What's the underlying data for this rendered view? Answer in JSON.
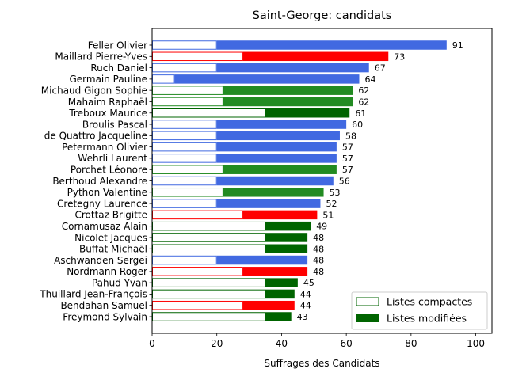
{
  "chart_data": {
    "type": "bar",
    "orientation": "horizontal",
    "title": "Saint-George: candidats",
    "xlabel": "Suffrages des Candidats",
    "ylabel": "",
    "xlim": [
      0,
      105
    ],
    "xticks": [
      0,
      20,
      40,
      60,
      80,
      100
    ],
    "grid": false,
    "legend_position": "lower-right",
    "legend": [
      {
        "label": "Listes compactes",
        "style": "outline",
        "color": "#006400"
      },
      {
        "label": "Listes modifiées",
        "style": "filled",
        "color": "#006400"
      }
    ],
    "party_colors": {
      "blue": "#4169e1",
      "red": "#ff0000",
      "green": "#228b22",
      "darkgreen": "#006400"
    },
    "candidates": [
      {
        "name": "Feller Olivier",
        "total": 91,
        "compact": 20,
        "party": "blue"
      },
      {
        "name": "Maillard Pierre-Yves",
        "total": 73,
        "compact": 28,
        "party": "red"
      },
      {
        "name": "Ruch Daniel",
        "total": 67,
        "compact": 20,
        "party": "blue"
      },
      {
        "name": "Germain Pauline",
        "total": 64,
        "compact": 7,
        "party": "blue"
      },
      {
        "name": "Michaud Gigon Sophie",
        "total": 62,
        "compact": 22,
        "party": "green"
      },
      {
        "name": "Mahaim Raphaël",
        "total": 62,
        "compact": 22,
        "party": "green"
      },
      {
        "name": "Treboux Maurice",
        "total": 61,
        "compact": 35,
        "party": "darkgreen"
      },
      {
        "name": "Broulis Pascal",
        "total": 60,
        "compact": 20,
        "party": "blue"
      },
      {
        "name": "de Quattro Jacqueline",
        "total": 58,
        "compact": 20,
        "party": "blue"
      },
      {
        "name": "Petermann Olivier",
        "total": 57,
        "compact": 20,
        "party": "blue"
      },
      {
        "name": "Wehrli Laurent",
        "total": 57,
        "compact": 20,
        "party": "blue"
      },
      {
        "name": "Porchet Léonore",
        "total": 57,
        "compact": 22,
        "party": "green"
      },
      {
        "name": "Berthoud Alexandre",
        "total": 56,
        "compact": 20,
        "party": "blue"
      },
      {
        "name": "Python Valentine",
        "total": 53,
        "compact": 22,
        "party": "green"
      },
      {
        "name": "Cretegny Laurence",
        "total": 52,
        "compact": 20,
        "party": "blue"
      },
      {
        "name": "Crottaz Brigitte",
        "total": 51,
        "compact": 28,
        "party": "red"
      },
      {
        "name": "Cornamusaz Alain",
        "total": 49,
        "compact": 35,
        "party": "darkgreen"
      },
      {
        "name": "Nicolet Jacques",
        "total": 48,
        "compact": 35,
        "party": "darkgreen"
      },
      {
        "name": "Buffat Michaël",
        "total": 48,
        "compact": 35,
        "party": "darkgreen"
      },
      {
        "name": "Aschwanden Sergei",
        "total": 48,
        "compact": 20,
        "party": "blue"
      },
      {
        "name": "Nordmann Roger",
        "total": 48,
        "compact": 28,
        "party": "red"
      },
      {
        "name": "Pahud Yvan",
        "total": 45,
        "compact": 35,
        "party": "darkgreen"
      },
      {
        "name": "Thuillard Jean-François",
        "total": 44,
        "compact": 35,
        "party": "darkgreen"
      },
      {
        "name": "Bendahan Samuel",
        "total": 44,
        "compact": 28,
        "party": "red"
      },
      {
        "name": "Freymond Sylvain",
        "total": 43,
        "compact": 35,
        "party": "darkgreen"
      }
    ]
  }
}
